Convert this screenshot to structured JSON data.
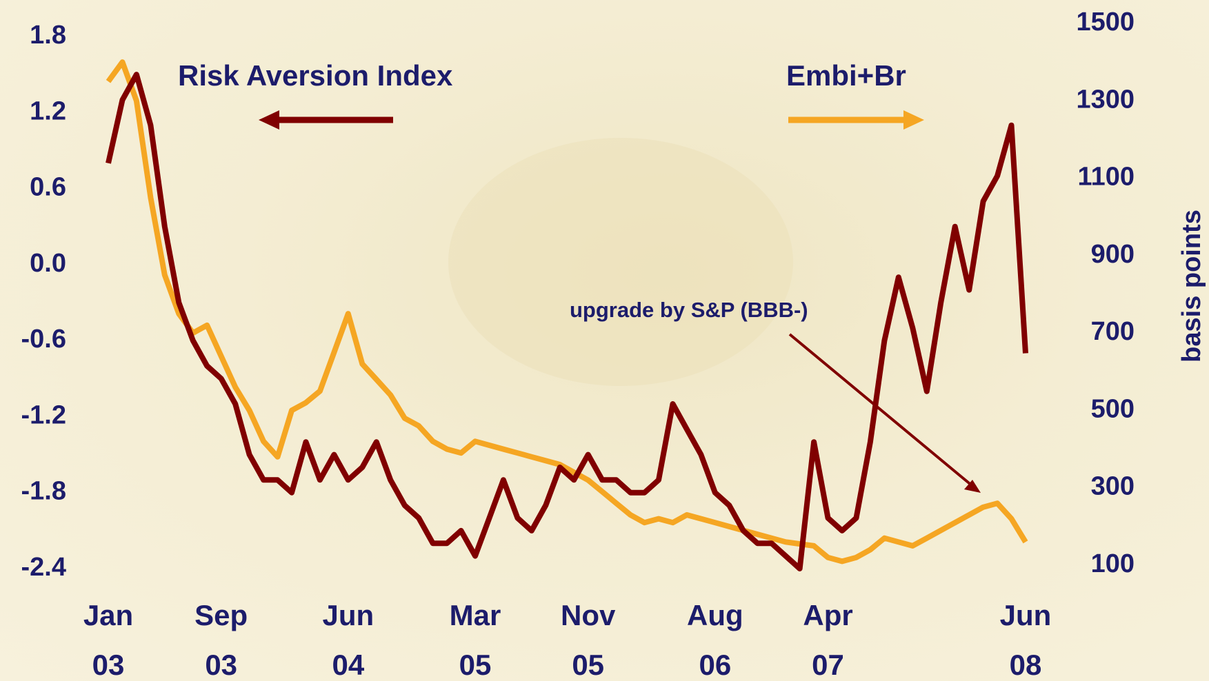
{
  "chart_data": {
    "type": "line",
    "annotations": [
      "Risk Aversion Index",
      "Embi+Br",
      "upgrade by S&P (BBB-)"
    ],
    "y2label": "basis points",
    "x": [
      "Jan 03",
      "Feb 03",
      "Mar 03",
      "Apr 03",
      "May 03",
      "Jun 03",
      "Jul 03",
      "Aug 03",
      "Sep 03",
      "Oct 03",
      "Nov 03",
      "Dec 03",
      "Jan 04",
      "Feb 04",
      "Mar 04",
      "Apr 04",
      "May 04",
      "Jun 04",
      "Jul 04",
      "Aug 04",
      "Sep 04",
      "Oct 04",
      "Nov 04",
      "Dec 04",
      "Jan 05",
      "Feb 05",
      "Mar 05",
      "Apr 05",
      "May 05",
      "Jun 05",
      "Jul 05",
      "Aug 05",
      "Sep 05",
      "Oct 05",
      "Nov 05",
      "Dec 05",
      "Jan 06",
      "Feb 06",
      "Mar 06",
      "Apr 06",
      "May 06",
      "Jun 06",
      "Jul 06",
      "Aug 06",
      "Sep 06",
      "Oct 06",
      "Nov 06",
      "Dec 06",
      "Jan 07",
      "Feb 07",
      "Mar 07",
      "Apr 07",
      "May 07",
      "Jun 07",
      "Jul 07",
      "Aug 07",
      "Sep 07",
      "Oct 07",
      "Nov 07",
      "Dec 07",
      "Jan 08",
      "Feb 08",
      "Mar 08",
      "Apr 08",
      "May 08",
      "Jun 08"
    ],
    "xticks": [
      "Jan 03",
      "Sep 03",
      "Jun 04",
      "Mar 05",
      "Nov 05",
      "Aug 06",
      "Apr 07",
      "Jun 08"
    ],
    "ylim": [
      -2.4,
      1.8
    ],
    "yticks": [
      -2.4,
      -1.8,
      -1.2,
      -0.6,
      {
        "value": 0,
        "label": "0.0"
      },
      0.6,
      1.2,
      1.8
    ],
    "y2lim": [
      100,
      1500
    ],
    "y2ticks": [
      100,
      300,
      500,
      700,
      900,
      1100,
      1300,
      1500
    ],
    "series": [
      {
        "name": "Embi+Br",
        "color": "#f5a623",
        "axis": "y2",
        "values": [
          1350,
          1400,
          1300,
          1050,
          850,
          750,
          700,
          720,
          640,
          560,
          500,
          420,
          380,
          500,
          520,
          550,
          650,
          750,
          620,
          580,
          540,
          480,
          460,
          420,
          400,
          390,
          420,
          410,
          400,
          390,
          380,
          370,
          360,
          340,
          320,
          290,
          260,
          230,
          210,
          220,
          210,
          230,
          220,
          210,
          200,
          190,
          180,
          170,
          160,
          155,
          150,
          120,
          110,
          120,
          140,
          170,
          160,
          150,
          170,
          190,
          210,
          230,
          250,
          260,
          220,
          160
        ]
      },
      {
        "name": "Risk Aversion Index",
        "color": "#800000",
        "values": [
          0.8,
          1.3,
          1.5,
          1.1,
          0.3,
          -0.3,
          -0.6,
          -0.8,
          -0.9,
          -1.1,
          -1.5,
          -1.7,
          -1.7,
          -1.8,
          -1.4,
          -1.7,
          -1.5,
          -1.7,
          -1.6,
          -1.4,
          -1.7,
          -1.9,
          -2.0,
          -2.2,
          -2.2,
          -2.1,
          -2.3,
          -2.0,
          -1.7,
          -2.0,
          -2.1,
          -1.9,
          -1.6,
          -1.7,
          -1.5,
          -1.7,
          -1.7,
          -1.8,
          -1.8,
          -1.7,
          -1.1,
          -1.3,
          -1.5,
          -1.8,
          -1.9,
          -2.1,
          -2.2,
          -2.2,
          -2.3,
          -2.4,
          -1.4,
          -2.0,
          -2.1,
          -2.0,
          -1.4,
          -0.6,
          -0.1,
          -0.5,
          -1.0,
          -0.3,
          0.3,
          -0.2,
          0.5,
          0.7,
          1.1,
          -0.7
        ]
      }
    ]
  }
}
